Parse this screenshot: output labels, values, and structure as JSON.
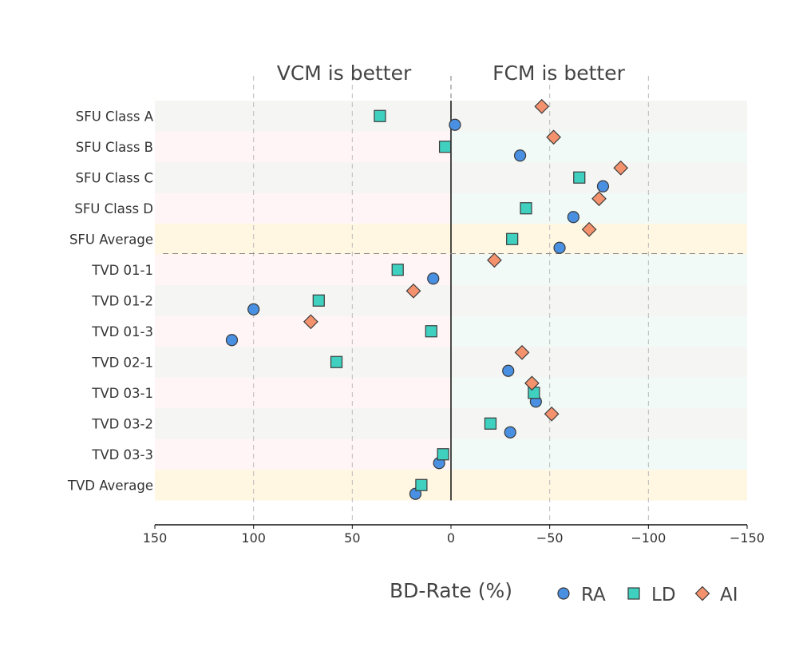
{
  "chart_data": {
    "type": "scatter",
    "title": "",
    "xlabel": "BD-Rate (%)",
    "ylabel": "",
    "xlim": [
      150,
      -150
    ],
    "x_reversed": true,
    "xticks": [
      150,
      100,
      50,
      0,
      -50,
      -100,
      -150
    ],
    "xtick_labels": [
      "150",
      "100",
      "50",
      "0",
      "−50",
      "−100",
      "−150"
    ],
    "region_labels": {
      "left": "VCM is better",
      "right": "FCM is better"
    },
    "categories": [
      "SFU Class A",
      "SFU Class B",
      "SFU Class C",
      "SFU Class D",
      "SFU Average",
      "TVD 01-1",
      "TVD 01-2",
      "TVD 01-3",
      "TVD 02-1",
      "TVD 03-1",
      "TVD 03-2",
      "TVD 03-3",
      "TVD Average"
    ],
    "average_rows": [
      "SFU Average",
      "TVD Average"
    ],
    "series": [
      {
        "name": "RA",
        "marker": "circle",
        "color": "#4a90e2",
        "values": [
          -2,
          -35,
          -77,
          -62,
          -55,
          9,
          100,
          111,
          -29,
          -43,
          -30,
          6,
          18
        ]
      },
      {
        "name": "LD",
        "marker": "square",
        "color": "#40d0c0",
        "values": [
          36,
          3,
          -65,
          -38,
          -31,
          27,
          67,
          10,
          58,
          -42,
          -20,
          4,
          15
        ]
      },
      {
        "name": "AI",
        "marker": "diamond",
        "color": "#f4926e",
        "values": [
          -46,
          -52,
          -86,
          -75,
          -70,
          -22,
          19,
          71,
          -36,
          -41,
          -51,
          null,
          null
        ]
      }
    ],
    "legend_position": "bottom-right",
    "colors": {
      "row_even": "#f5f5f3",
      "row_odd_left": "#fff5f6",
      "row_odd_right": "#f1faf7",
      "row_average": "#fff7e2",
      "grid": "#bbbbbb",
      "marker_edge": "#3a3a3a"
    }
  }
}
